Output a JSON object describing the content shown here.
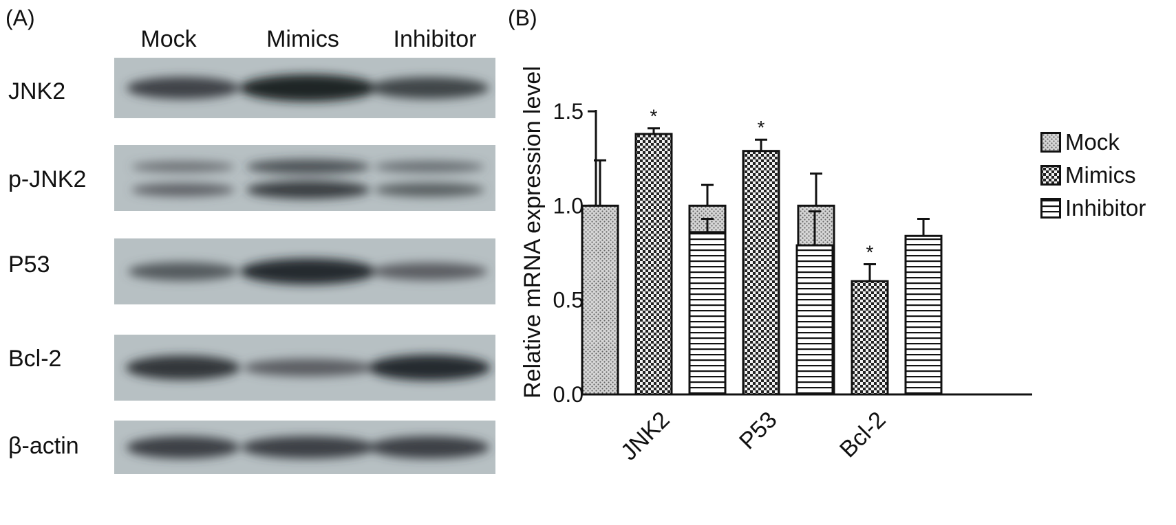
{
  "panel_a": {
    "label": "(A)",
    "lanes": [
      "Mock",
      "Mimics",
      "Inhibitor"
    ],
    "rows": [
      {
        "label": "JNK2",
        "bands": [
          0.7,
          0.98,
          0.68
        ]
      },
      {
        "label": "p-JNK2",
        "bands": [
          0.45,
          0.8,
          0.5
        ]
      },
      {
        "label": "P53",
        "bands": [
          0.5,
          0.92,
          0.45
        ]
      },
      {
        "label": "Bcl-2",
        "bands": [
          0.82,
          0.45,
          0.9
        ]
      },
      {
        "label": "β-actin",
        "bands": [
          0.72,
          0.72,
          0.72
        ]
      }
    ]
  },
  "panel_b": {
    "label": "(B)"
  },
  "chart_data": {
    "type": "bar",
    "ylabel": "Relative mRNA expression level",
    "ylim": [
      0,
      1.5
    ],
    "yticks": [
      "0.0",
      "0.5",
      "1.0",
      "1.5"
    ],
    "categories": [
      "JNK2",
      "P53",
      "Bcl-2"
    ],
    "series": [
      {
        "name": "Mock",
        "pattern": "dots",
        "values": [
          1.0,
          1.0,
          1.0
        ],
        "errors": [
          0.24,
          0.11,
          0.17
        ]
      },
      {
        "name": "Mimics",
        "pattern": "checker",
        "values": [
          1.38,
          1.29,
          0.6
        ],
        "errors": [
          0.03,
          0.06,
          0.09
        ]
      },
      {
        "name": "Inhibitor",
        "pattern": "hlines",
        "values": [
          0.86,
          0.79,
          0.84
        ],
        "errors": [
          0.07,
          0.18,
          0.09
        ]
      }
    ],
    "significance": [
      {
        "category": 0,
        "series": 1,
        "text": "*"
      },
      {
        "category": 1,
        "series": 1,
        "text": "*"
      },
      {
        "category": 2,
        "series": 1,
        "text": "*"
      }
    ],
    "legend_position": "right"
  }
}
